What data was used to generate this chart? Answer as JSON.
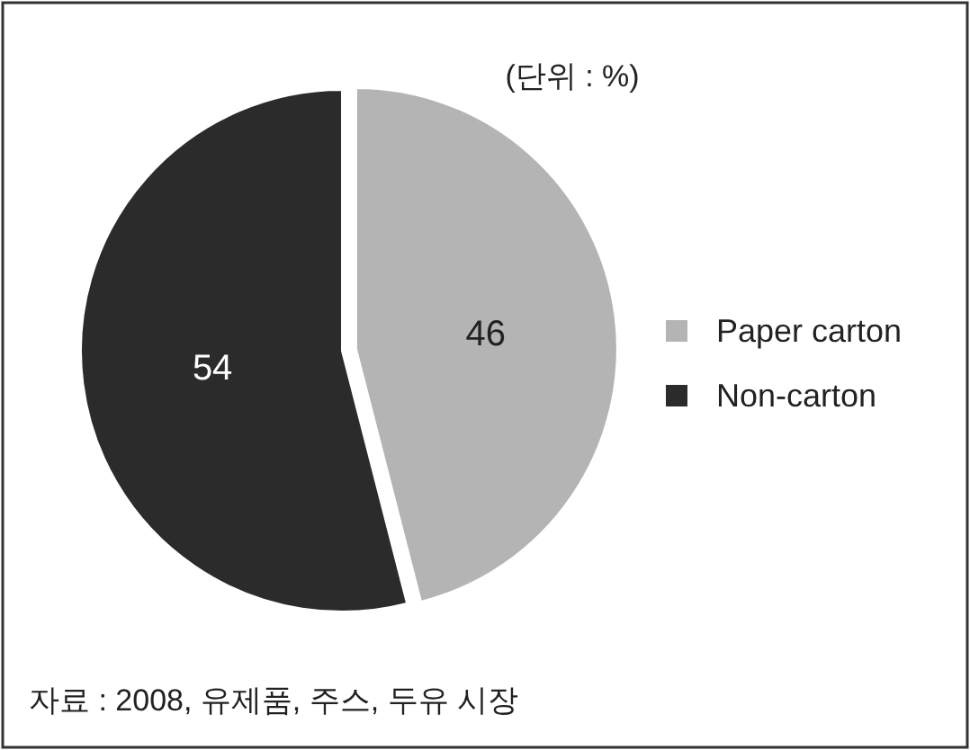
{
  "chart_data": {
    "type": "pie",
    "subtitle": "(단위 : %)",
    "categories": [
      "Paper carton",
      "Non-carton"
    ],
    "values": [
      46,
      54
    ],
    "colors": [
      "#b4b4b4",
      "#2b2b2b"
    ],
    "data_labels": true,
    "legend": "right",
    "annotations": [
      "자료 : 2008, 유제품, 주스, 두유 시장"
    ]
  }
}
